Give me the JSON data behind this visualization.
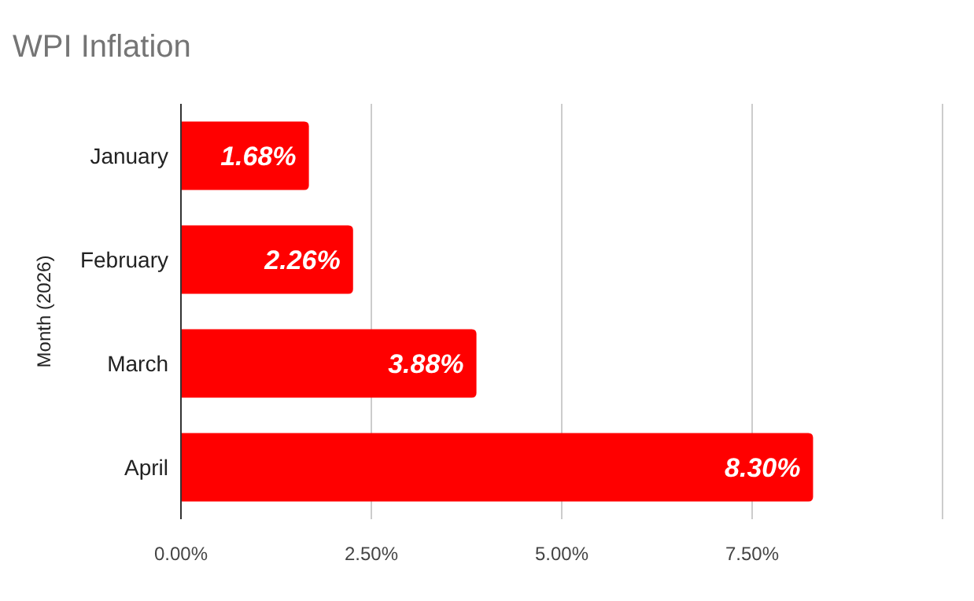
{
  "chart_data": {
    "type": "bar",
    "orientation": "horizontal",
    "title": "WPI Inflation",
    "ylabel": "Month (2026)",
    "categories": [
      "January",
      "February",
      "March",
      "April"
    ],
    "values": [
      1.68,
      2.26,
      3.88,
      8.3
    ],
    "color": "#ff0000",
    "value_labels": [
      "1.68%",
      "2.26%",
      "3.88%",
      "8.30%"
    ],
    "xlim": [
      0,
      10
    ],
    "xticks": [
      {
        "value": 0,
        "label": "0.00%"
      },
      {
        "value": 2.5,
        "label": "2.50%"
      },
      {
        "value": 5,
        "label": "5.00%"
      },
      {
        "value": 7.5,
        "label": "7.50%"
      },
      {
        "value": 10,
        "label": null
      }
    ],
    "grid": "x"
  }
}
